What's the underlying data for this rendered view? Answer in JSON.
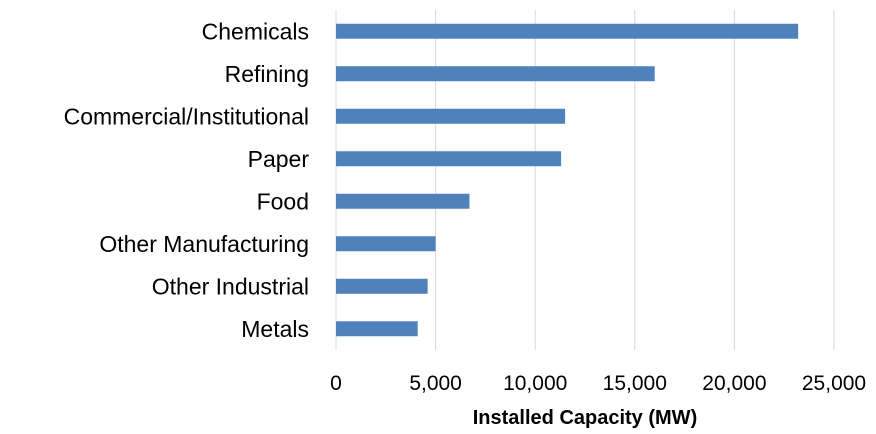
{
  "chart_data": {
    "type": "bar",
    "orientation": "horizontal",
    "categories": [
      "Chemicals",
      "Refining",
      "Commercial/Institutional",
      "Paper",
      "Food",
      "Other Manufacturing",
      "Other Industrial",
      "Metals"
    ],
    "values": [
      23200,
      16000,
      11500,
      11300,
      6700,
      5000,
      4600,
      4100
    ],
    "xlabel": "Installed Capacity (MW)",
    "ylabel": "",
    "xlim": [
      0,
      25000
    ],
    "xticks": [
      0,
      5000,
      10000,
      15000,
      20000,
      25000
    ],
    "xtick_labels": [
      "0",
      "5,000",
      "10,000",
      "15,000",
      "20,000",
      "25,000"
    ],
    "grid": "vertical",
    "bar_color": "#4f81bd",
    "grid_color": "#d9d9d9"
  }
}
